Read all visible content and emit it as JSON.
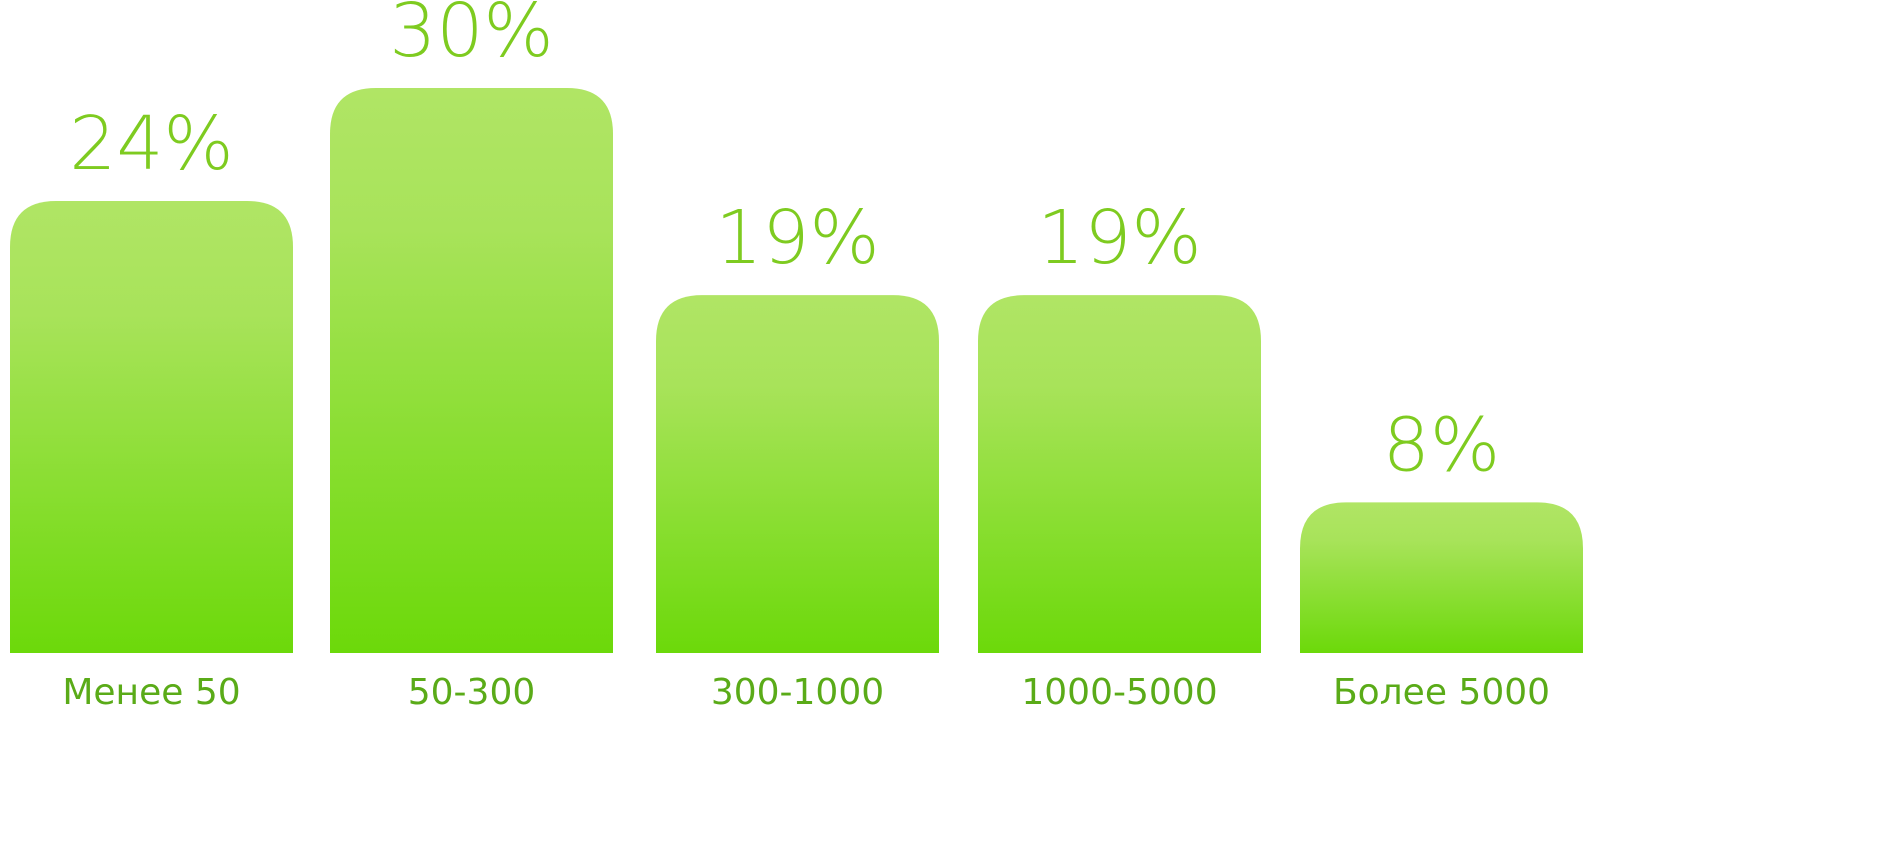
{
  "chart_data": {
    "type": "bar",
    "categories": [
      "Менее 50",
      "50-300",
      "300-1000",
      "1000-5000",
      "Более 5000"
    ],
    "values": [
      24,
      30,
      19,
      19,
      8
    ],
    "data_labels": [
      "24%",
      "30%",
      "19%",
      "19%",
      "8%"
    ],
    "title": "",
    "xlabel": "",
    "ylabel": "",
    "ylim": [
      0,
      30
    ],
    "grid": false,
    "legend": "none",
    "colors": {
      "bar_top": "#b0e565",
      "bar_bottom": "#6cd90a",
      "value_label": "#7ecb20",
      "category_label": "#5aab18"
    }
  }
}
